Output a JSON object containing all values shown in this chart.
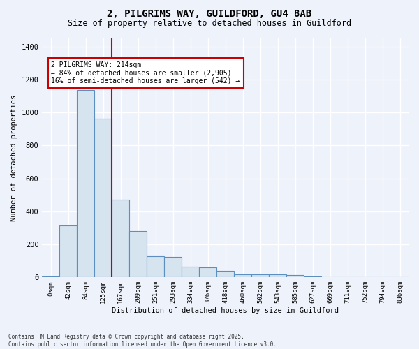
{
  "title": "2, PILGRIMS WAY, GUILDFORD, GU4 8AB",
  "subtitle": "Size of property relative to detached houses in Guildford",
  "xlabel": "Distribution of detached houses by size in Guildford",
  "ylabel": "Number of detached properties",
  "bin_labels": [
    "0sqm",
    "42sqm",
    "84sqm",
    "125sqm",
    "167sqm",
    "209sqm",
    "251sqm",
    "293sqm",
    "334sqm",
    "376sqm",
    "418sqm",
    "460sqm",
    "502sqm",
    "543sqm",
    "585sqm",
    "627sqm",
    "669sqm",
    "711sqm",
    "752sqm",
    "794sqm",
    "836sqm"
  ],
  "bar_values": [
    5,
    315,
    1135,
    965,
    470,
    280,
    130,
    125,
    65,
    60,
    40,
    18,
    20,
    20,
    15,
    5,
    0,
    0,
    0,
    0,
    0
  ],
  "bar_color": "#d6e4f0",
  "bar_edge_color": "#5a8fc0",
  "vline_x": 3.5,
  "vline_color": "#cc0000",
  "annotation_text": "2 PILGRIMS WAY: 214sqm\n← 84% of detached houses are smaller (2,905)\n16% of semi-detached houses are larger (542) →",
  "annotation_box_color": "#ffffff",
  "annotation_box_edge": "#cc0000",
  "ylim": [
    0,
    1450
  ],
  "yticks": [
    0,
    200,
    400,
    600,
    800,
    1000,
    1200,
    1400
  ],
  "background_color": "#eef2fb",
  "grid_color": "#ffffff",
  "footer_line1": "Contains HM Land Registry data © Crown copyright and database right 2025.",
  "footer_line2": "Contains public sector information licensed under the Open Government Licence v3.0."
}
